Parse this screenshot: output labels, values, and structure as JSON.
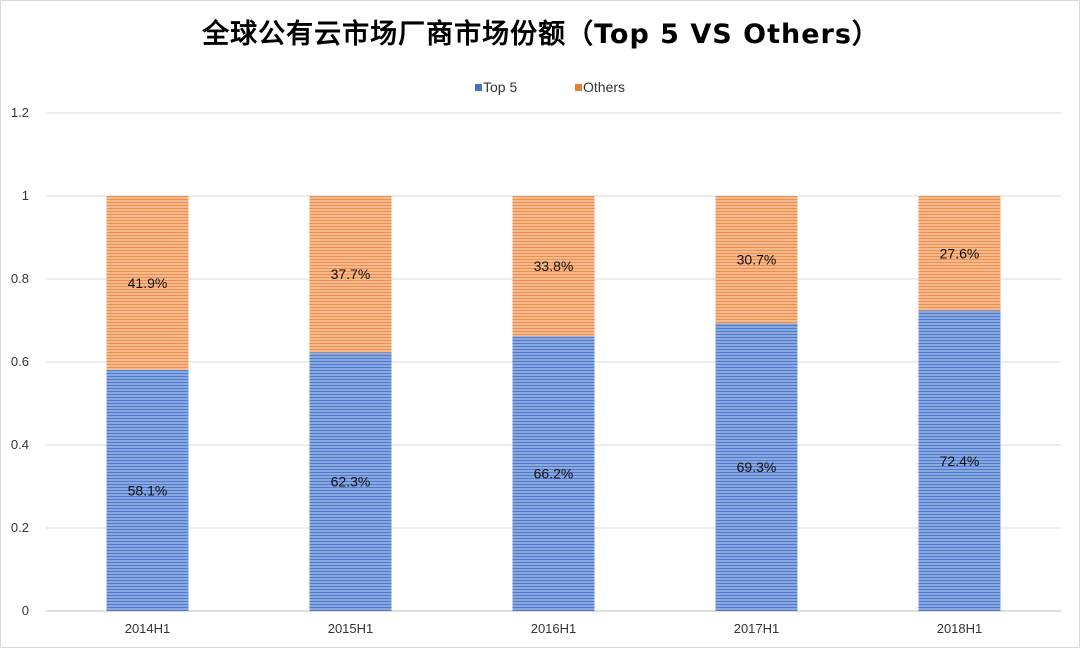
{
  "colors": {
    "top5": "#4472c4",
    "top5_fill": "#7f9fdb",
    "others": "#ed7d31",
    "others_fill": "#f4b183",
    "grid": "#d9d9d9",
    "axis": "#bfbfbf"
  },
  "chart_data": {
    "type": "bar",
    "stacked": true,
    "title": "全球公有云市场厂商市场份额（Top 5 VS Others）",
    "xlabel": "",
    "ylabel": "",
    "ylim": [
      0,
      1.2
    ],
    "yticks": [
      "0",
      "0.2",
      "0.4",
      "0.6",
      "0.8",
      "1",
      "1.2"
    ],
    "categories": [
      "2014H1",
      "2015H1",
      "2016H1",
      "2017H1",
      "2018H1"
    ],
    "series": [
      {
        "name": "Top 5",
        "values": [
          0.581,
          0.623,
          0.662,
          0.693,
          0.724
        ],
        "labels": [
          "58.1%",
          "62.3%",
          "66.2%",
          "69.3%",
          "72.4%"
        ]
      },
      {
        "name": "Others",
        "values": [
          0.419,
          0.377,
          0.338,
          0.307,
          0.276
        ],
        "labels": [
          "41.9%",
          "37.7%",
          "33.8%",
          "30.7%",
          "27.6%"
        ]
      }
    ],
    "grid": true,
    "legend": "top"
  }
}
